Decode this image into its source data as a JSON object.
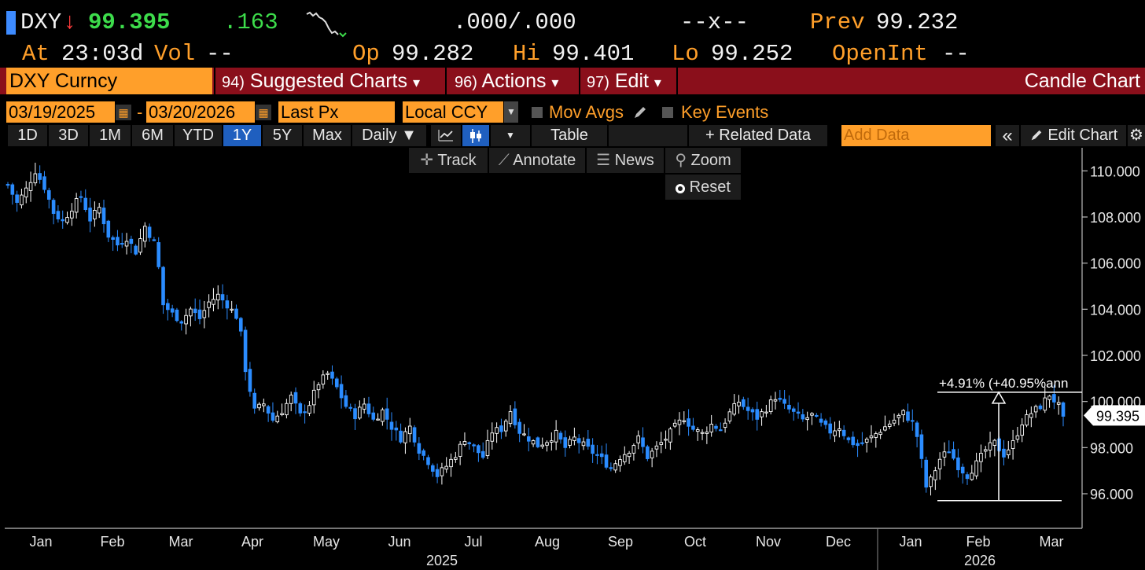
{
  "quote": {
    "ticker": "DXY",
    "arrow": "↓",
    "last": "99.395",
    "change": ".163",
    "bidask": ".000/.000",
    "size": "--x--",
    "prev_label": "Prev",
    "prev": "99.232",
    "at_label": "At",
    "time": "23:03d",
    "vol_label": "Vol",
    "vol": "--",
    "op_label": "Op",
    "open": "99.282",
    "hi_label": "Hi",
    "high": "99.401",
    "lo_label": "Lo",
    "low": "99.252",
    "oi_label": "OpenInt",
    "oi": "--"
  },
  "titlebar": {
    "security": "DXY Curncy",
    "menu1_num": "94)",
    "menu1": "Suggested Charts",
    "menu2_num": "96)",
    "menu2": "Actions",
    "menu3_num": "97)",
    "menu3": "Edit",
    "caret": "▾",
    "chart_name": "Candle Chart"
  },
  "controls": {
    "start_date": "03/19/2025",
    "dash": "-",
    "end_date": "03/20/2026",
    "field": "Last Px",
    "currency": "Local CCY",
    "mov_avgs": "Mov Avgs",
    "key_events": "Key Events"
  },
  "tabs": {
    "ranges": [
      "1D",
      "3D",
      "1M",
      "6M",
      "YTD",
      "1Y",
      "5Y",
      "Max"
    ],
    "active": "1Y",
    "frequency": "Daily ▼",
    "table": "Table",
    "related": "+ Related Data",
    "add_data_placeholder": "Add Data",
    "collapse": "«",
    "edit_chart": "Edit Chart"
  },
  "toolbar": {
    "track": "Track",
    "annotate": "Annotate",
    "news": "News",
    "zoom": "Zoom",
    "reset": "Reset"
  },
  "chart_data": {
    "type": "candlestick",
    "title": "",
    "xlabel": "",
    "ylabel": "",
    "ylim": [
      94.5,
      111.0
    ],
    "y_ticks": [
      "110.000",
      "108.000",
      "106.000",
      "104.000",
      "102.000",
      "100.000",
      "98.000",
      "96.000"
    ],
    "x_months": [
      "Jan",
      "Feb",
      "Mar",
      "Apr",
      "May",
      "Jun",
      "Jul",
      "Aug",
      "Sep",
      "Oct",
      "Nov",
      "Dec",
      "Jan",
      "Feb",
      "Mar"
    ],
    "year_labels": [
      "2025",
      "2026"
    ],
    "last_value_label": "99.395",
    "annotation": "+4.91% (+40.95%ann",
    "measure_start": 95.7,
    "measure_end": 100.4,
    "up_color": "#ffffff",
    "down_color": "#2b8cff",
    "close_path": [
      [
        0,
        109.4
      ],
      [
        2,
        108.6
      ],
      [
        4,
        109.2
      ],
      [
        6,
        110.0
      ],
      [
        8,
        109.3
      ],
      [
        10,
        108.2
      ],
      [
        12,
        107.8
      ],
      [
        14,
        108.4
      ],
      [
        16,
        108.9
      ],
      [
        18,
        107.9
      ],
      [
        20,
        108.4
      ],
      [
        22,
        107.2
      ],
      [
        24,
        106.8
      ],
      [
        26,
        107.1
      ],
      [
        28,
        106.5
      ],
      [
        30,
        107.6
      ],
      [
        32,
        106.9
      ],
      [
        33,
        105.8
      ],
      [
        34,
        104.2
      ],
      [
        36,
        103.8
      ],
      [
        38,
        103.5
      ],
      [
        40,
        104.0
      ],
      [
        42,
        103.6
      ],
      [
        44,
        104.3
      ],
      [
        46,
        104.6
      ],
      [
        48,
        104.2
      ],
      [
        50,
        103.7
      ],
      [
        51,
        102.9
      ],
      [
        52,
        101.4
      ],
      [
        53,
        100.5
      ],
      [
        54,
        99.6
      ],
      [
        56,
        99.9
      ],
      [
        58,
        99.2
      ],
      [
        60,
        99.6
      ],
      [
        62,
        100.2
      ],
      [
        64,
        99.4
      ],
      [
        66,
        99.9
      ],
      [
        68,
        100.8
      ],
      [
        70,
        101.2
      ],
      [
        72,
        100.6
      ],
      [
        74,
        99.8
      ],
      [
        76,
        99.4
      ],
      [
        78,
        99.9
      ],
      [
        80,
        99.2
      ],
      [
        82,
        99.6
      ],
      [
        84,
        98.9
      ],
      [
        86,
        98.4
      ],
      [
        88,
        98.9
      ],
      [
        90,
        97.9
      ],
      [
        92,
        97.4
      ],
      [
        94,
        96.8
      ],
      [
        96,
        97.2
      ],
      [
        98,
        97.7
      ],
      [
        100,
        98.4
      ],
      [
        102,
        98.0
      ],
      [
        104,
        97.6
      ],
      [
        106,
        98.7
      ],
      [
        108,
        98.8
      ],
      [
        110,
        99.6
      ],
      [
        112,
        98.7
      ],
      [
        114,
        98.4
      ],
      [
        116,
        98.1
      ],
      [
        118,
        98.3
      ],
      [
        120,
        98.6
      ],
      [
        122,
        98.0
      ],
      [
        124,
        98.4
      ],
      [
        126,
        98.1
      ],
      [
        128,
        97.8
      ],
      [
        130,
        97.5
      ],
      [
        132,
        97.1
      ],
      [
        134,
        97.6
      ],
      [
        136,
        97.9
      ],
      [
        138,
        98.4
      ],
      [
        140,
        97.6
      ],
      [
        142,
        98.0
      ],
      [
        144,
        98.4
      ],
      [
        146,
        98.9
      ],
      [
        148,
        99.3
      ],
      [
        150,
        98.8
      ],
      [
        152,
        98.6
      ],
      [
        154,
        99.0
      ],
      [
        156,
        98.8
      ],
      [
        158,
        99.5
      ],
      [
        160,
        100.0
      ],
      [
        162,
        99.6
      ],
      [
        164,
        99.3
      ],
      [
        166,
        99.7
      ],
      [
        168,
        100.2
      ],
      [
        170,
        99.8
      ],
      [
        172,
        99.5
      ],
      [
        174,
        99.2
      ],
      [
        176,
        99.4
      ],
      [
        178,
        99.0
      ],
      [
        180,
        98.7
      ],
      [
        182,
        98.9
      ],
      [
        184,
        98.3
      ],
      [
        186,
        98.1
      ],
      [
        188,
        98.3
      ],
      [
        190,
        98.6
      ],
      [
        192,
        98.9
      ],
      [
        194,
        99.2
      ],
      [
        196,
        99.5
      ],
      [
        198,
        99.1
      ],
      [
        199,
        98.5
      ],
      [
        200,
        97.4
      ],
      [
        201,
        96.3
      ],
      [
        202,
        96.6
      ],
      [
        204,
        97.5
      ],
      [
        206,
        97.9
      ],
      [
        208,
        97.2
      ],
      [
        210,
        96.8
      ],
      [
        212,
        97.3
      ],
      [
        214,
        97.9
      ],
      [
        216,
        98.2
      ],
      [
        218,
        97.7
      ],
      [
        220,
        98.2
      ],
      [
        222,
        99.1
      ],
      [
        224,
        99.5
      ],
      [
        226,
        99.8
      ],
      [
        228,
        100.3
      ],
      [
        230,
        99.8
      ],
      [
        231,
        99.2
      ]
    ]
  }
}
